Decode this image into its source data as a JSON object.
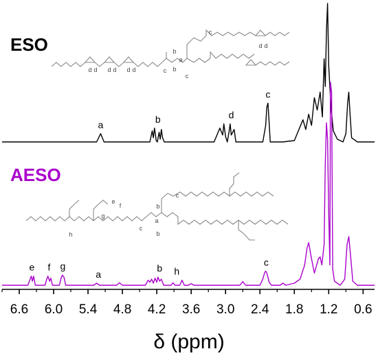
{
  "chart_data": {
    "type": "line",
    "xlabel": "δ (ppm)",
    "xlim": [
      6.9,
      0.4
    ],
    "x_reversed": true,
    "x_ticks": [
      "6.6",
      "6.0",
      "5.4",
      "4.8",
      "4.2",
      "3.6",
      "3.0",
      "2.4",
      "1.8",
      "1.2",
      "0.6"
    ],
    "series": [
      {
        "name": "ESO",
        "color": "#000000",
        "points": [
          [
            6.9,
            0
          ],
          [
            5.25,
            0
          ],
          [
            5.18,
            0.06
          ],
          [
            5.12,
            0
          ],
          [
            4.32,
            0
          ],
          [
            4.28,
            0.08
          ],
          [
            4.26,
            0.03
          ],
          [
            4.24,
            0.1
          ],
          [
            4.21,
            0.01
          ],
          [
            4.19,
            0
          ],
          [
            4.16,
            0.07
          ],
          [
            4.14,
            0.02
          ],
          [
            4.12,
            0.09
          ],
          [
            4.1,
            0.03
          ],
          [
            4.07,
            0
          ],
          [
            3.2,
            0
          ],
          [
            3.1,
            0.1
          ],
          [
            3.05,
            0.05
          ],
          [
            3.03,
            0.13
          ],
          [
            3.0,
            0.04
          ],
          [
            2.97,
            0
          ],
          [
            2.94,
            0.07
          ],
          [
            2.92,
            0.13
          ],
          [
            2.9,
            0.05
          ],
          [
            2.85,
            0.09
          ],
          [
            2.82,
            0
          ],
          [
            2.35,
            0
          ],
          [
            2.3,
            0.12
          ],
          [
            2.28,
            0.25
          ],
          [
            2.26,
            0.28
          ],
          [
            2.24,
            0.14
          ],
          [
            2.22,
            0
          ],
          [
            2.0,
            0
          ],
          [
            1.8,
            0.01
          ],
          [
            1.7,
            0.11
          ],
          [
            1.65,
            0.16
          ],
          [
            1.6,
            0.09
          ],
          [
            1.55,
            0.2
          ],
          [
            1.5,
            0.12
          ],
          [
            1.45,
            0.32
          ],
          [
            1.4,
            0.23
          ],
          [
            1.35,
            0.36
          ],
          [
            1.31,
            0.18
          ],
          [
            1.28,
            0.6
          ],
          [
            1.26,
            0.4
          ],
          [
            1.24,
            0.8
          ],
          [
            1.22,
            1.0
          ],
          [
            1.2,
            0.55
          ],
          [
            1.16,
            0.25
          ],
          [
            1.12,
            0.08
          ],
          [
            1.05,
            0.02
          ],
          [
            0.95,
            0
          ],
          [
            0.9,
            0.06
          ],
          [
            0.87,
            0.28
          ],
          [
            0.85,
            0.36
          ],
          [
            0.83,
            0.22
          ],
          [
            0.8,
            0.03
          ],
          [
            0.7,
            0
          ],
          [
            0.4,
            0
          ]
        ]
      },
      {
        "name": "AESO",
        "color": "#aa00cc",
        "points": [
          [
            6.9,
            0
          ],
          [
            6.45,
            0
          ],
          [
            6.41,
            0.03
          ],
          [
            6.39,
            0.045
          ],
          [
            6.37,
            0.02
          ],
          [
            6.35,
            0.045
          ],
          [
            6.32,
            0
          ],
          [
            6.15,
            0
          ],
          [
            6.12,
            0.03
          ],
          [
            6.1,
            0.045
          ],
          [
            6.07,
            0.02
          ],
          [
            6.05,
            0.035
          ],
          [
            6.02,
            0
          ],
          [
            5.9,
            0
          ],
          [
            5.87,
            0.035
          ],
          [
            5.85,
            0.05
          ],
          [
            5.82,
            0.04
          ],
          [
            5.79,
            0
          ],
          [
            5.3,
            0
          ],
          [
            5.25,
            0.01
          ],
          [
            5.2,
            0
          ],
          [
            4.9,
            0
          ],
          [
            4.85,
            0.012
          ],
          [
            4.8,
            0
          ],
          [
            4.4,
            0
          ],
          [
            4.35,
            0.025
          ],
          [
            4.32,
            0.015
          ],
          [
            4.29,
            0.03
          ],
          [
            4.26,
            0.01
          ],
          [
            4.23,
            0.035
          ],
          [
            4.2,
            0.015
          ],
          [
            4.18,
            0.04
          ],
          [
            4.15,
            0.02
          ],
          [
            4.12,
            0.03
          ],
          [
            4.08,
            0
          ],
          [
            3.95,
            0
          ],
          [
            3.92,
            0.012
          ],
          [
            3.88,
            0
          ],
          [
            3.8,
            0
          ],
          [
            3.76,
            0.025
          ],
          [
            3.72,
            0
          ],
          [
            3.65,
            0
          ],
          [
            3.6,
            0.008
          ],
          [
            3.55,
            0
          ],
          [
            2.75,
            0
          ],
          [
            2.7,
            0.018
          ],
          [
            2.65,
            0
          ],
          [
            2.4,
            0
          ],
          [
            2.35,
            0.03
          ],
          [
            2.32,
            0.06
          ],
          [
            2.3,
            0.07
          ],
          [
            2.28,
            0.06
          ],
          [
            2.26,
            0.04
          ],
          [
            2.24,
            0.015
          ],
          [
            2.2,
            0
          ],
          [
            2.05,
            0
          ],
          [
            2.0,
            0.01
          ],
          [
            1.95,
            0
          ],
          [
            1.8,
            0.01
          ],
          [
            1.7,
            0.03
          ],
          [
            1.62,
            0.1
          ],
          [
            1.58,
            0.18
          ],
          [
            1.55,
            0.21
          ],
          [
            1.5,
            0.13
          ],
          [
            1.45,
            0.06
          ],
          [
            1.42,
            0.09
          ],
          [
            1.38,
            0.13
          ],
          [
            1.35,
            0.14
          ],
          [
            1.32,
            0.1
          ],
          [
            1.28,
            0.2
          ],
          [
            1.26,
            0.6
          ],
          [
            1.24,
            0.8
          ],
          [
            1.22,
            0.72
          ],
          [
            1.2,
            0.35
          ],
          [
            1.18,
            0.1
          ],
          [
            1.17,
            1.0
          ],
          [
            1.15,
            0.95
          ],
          [
            1.13,
            0.08
          ],
          [
            1.1,
            0.02
          ],
          [
            1.0,
            0
          ],
          [
            0.92,
            0.03
          ],
          [
            0.88,
            0.2
          ],
          [
            0.85,
            0.24
          ],
          [
            0.82,
            0.15
          ],
          [
            0.78,
            0.02
          ],
          [
            0.7,
            0
          ],
          [
            0.4,
            0
          ]
        ]
      }
    ],
    "annotations": [
      {
        "series": "ESO",
        "text": "a",
        "x": 5.18
      },
      {
        "series": "ESO",
        "text": "b",
        "x": 4.18
      },
      {
        "series": "ESO",
        "text": "d",
        "x": 2.9
      },
      {
        "series": "ESO",
        "text": "c",
        "x": 2.26
      },
      {
        "series": "AESO",
        "text": "e",
        "x": 6.38
      },
      {
        "series": "AESO",
        "text": "f",
        "x": 6.08
      },
      {
        "series": "AESO",
        "text": "g",
        "x": 5.84
      },
      {
        "series": "AESO",
        "text": "a",
        "x": 5.22
      },
      {
        "series": "AESO",
        "text": "b",
        "x": 4.15
      },
      {
        "series": "AESO",
        "text": "h",
        "x": 3.85
      },
      {
        "series": "AESO",
        "text": "c",
        "x": 2.29
      }
    ],
    "grid": false,
    "legend": "none"
  },
  "labels": {
    "eso": "ESO",
    "aeso": "AESO"
  },
  "colors": {
    "eso": "#000000",
    "aeso": "#aa00cc",
    "structure": "#888888"
  },
  "structures": {
    "eso_labels": [
      "c",
      "b",
      "a",
      "b",
      "c",
      "c",
      "d",
      "d",
      "d",
      "d",
      "d",
      "d",
      "d",
      "d"
    ],
    "aeso_labels": [
      "e",
      "f",
      "g",
      "h",
      "b",
      "a",
      "b",
      "c",
      "c"
    ]
  }
}
